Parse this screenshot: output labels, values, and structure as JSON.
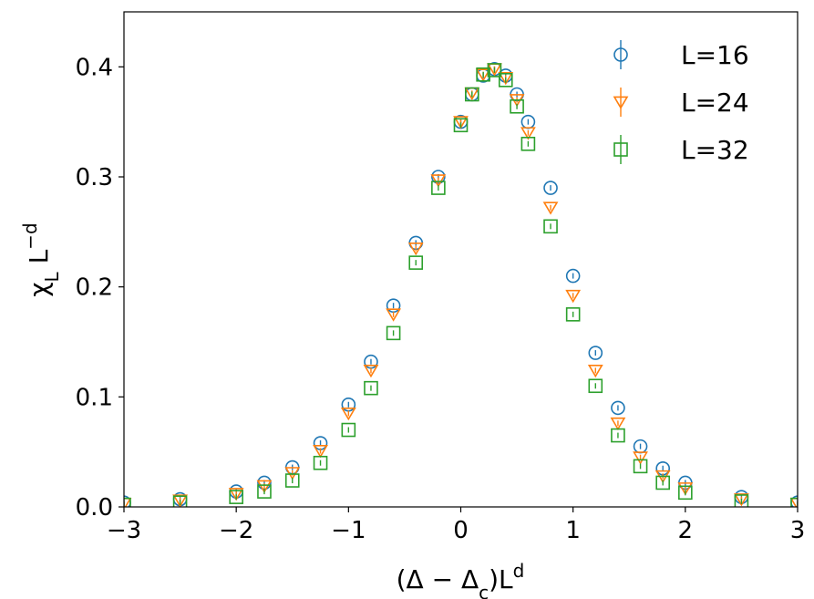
{
  "chart_data": {
    "type": "scatter",
    "title": "",
    "xlabel": "(Δ − Δ_c)L^d",
    "ylabel": "χ_L L^−d",
    "xlim": [
      -3,
      3
    ],
    "ylim": [
      0,
      0.45
    ],
    "xticks": [
      -3,
      -2,
      -1,
      0,
      1,
      2,
      3
    ],
    "xtick_labels": [
      "−3",
      "−2",
      "−1",
      "0",
      "1",
      "2",
      "3"
    ],
    "yticks": [
      0.0,
      0.1,
      0.2,
      0.3,
      0.4
    ],
    "ytick_labels": [
      "0.0",
      "0.1",
      "0.2",
      "0.3",
      "0.4"
    ],
    "grid": false,
    "legend_position": "top-right",
    "error_bars": true,
    "series": [
      {
        "name": "L=16",
        "marker": "circle",
        "color": "#1f77b4",
        "x": [
          -3.0,
          -2.5,
          -2.0,
          -1.75,
          -1.5,
          -1.25,
          -1.0,
          -0.8,
          -0.6,
          -0.4,
          -0.2,
          0.0,
          0.1,
          0.2,
          0.3,
          0.4,
          0.5,
          0.6,
          0.8,
          1.0,
          1.2,
          1.4,
          1.6,
          1.8,
          2.0,
          2.5,
          3.0
        ],
        "y": [
          0.004,
          0.007,
          0.014,
          0.022,
          0.036,
          0.058,
          0.093,
          0.132,
          0.183,
          0.24,
          0.3,
          0.35,
          0.375,
          0.392,
          0.398,
          0.392,
          0.375,
          0.35,
          0.29,
          0.21,
          0.14,
          0.09,
          0.055,
          0.035,
          0.022,
          0.009,
          0.004
        ]
      },
      {
        "name": "L=24",
        "marker": "triangle-down",
        "color": "#ff7f0e",
        "x": [
          -3.0,
          -2.5,
          -2.0,
          -1.75,
          -1.5,
          -1.25,
          -1.0,
          -0.8,
          -0.6,
          -0.4,
          -0.2,
          0.0,
          0.1,
          0.2,
          0.3,
          0.4,
          0.5,
          0.6,
          0.8,
          1.0,
          1.2,
          1.4,
          1.6,
          1.8,
          2.0,
          2.5,
          3.0
        ],
        "y": [
          0.003,
          0.006,
          0.012,
          0.019,
          0.031,
          0.051,
          0.085,
          0.124,
          0.175,
          0.235,
          0.297,
          0.35,
          0.376,
          0.393,
          0.398,
          0.39,
          0.37,
          0.34,
          0.272,
          0.192,
          0.124,
          0.076,
          0.045,
          0.028,
          0.017,
          0.007,
          0.003
        ]
      },
      {
        "name": "L=32",
        "marker": "square",
        "color": "#2ca02c",
        "x": [
          -3.0,
          -2.5,
          -2.0,
          -1.75,
          -1.5,
          -1.25,
          -1.0,
          -0.8,
          -0.6,
          -0.4,
          -0.2,
          0.0,
          0.1,
          0.2,
          0.3,
          0.4,
          0.5,
          0.6,
          0.8,
          1.0,
          1.2,
          1.4,
          1.6,
          1.8,
          2.0,
          2.5,
          3.0
        ],
        "y": [
          0.002,
          0.004,
          0.009,
          0.014,
          0.024,
          0.04,
          0.07,
          0.108,
          0.158,
          0.222,
          0.29,
          0.347,
          0.375,
          0.393,
          0.397,
          0.388,
          0.364,
          0.33,
          0.255,
          0.175,
          0.11,
          0.065,
          0.037,
          0.022,
          0.013,
          0.005,
          0.002
        ]
      }
    ]
  }
}
